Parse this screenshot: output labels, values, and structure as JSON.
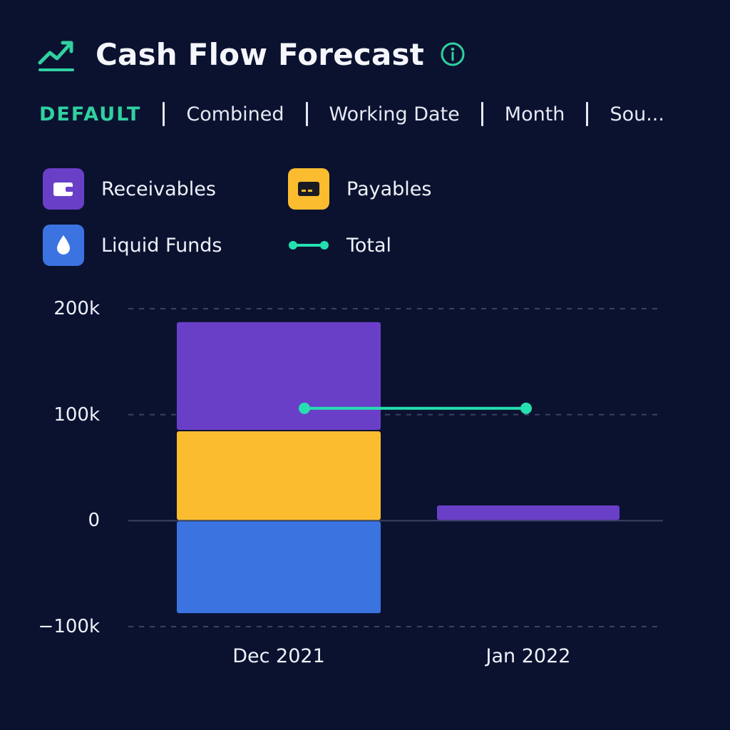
{
  "header": {
    "title": "Cash Flow Forecast",
    "trend_icon": "trending-up-icon",
    "info_icon": "info-icon"
  },
  "tabs": [
    {
      "label": "DEFAULT",
      "active": true
    },
    {
      "label": "Combined",
      "active": false
    },
    {
      "label": "Working Date",
      "active": false
    },
    {
      "label": "Month",
      "active": false
    },
    {
      "label": "Sou...",
      "active": false
    }
  ],
  "colors": {
    "background": "#0b1230",
    "receivables": "#6a3fc8",
    "payables": "#fbbd2f",
    "liquid_funds": "#3b74e0",
    "total": "#24e0b0",
    "accent": "#2fd1a0"
  },
  "legend": [
    {
      "label": "Receivables",
      "icon": "wallet-icon"
    },
    {
      "label": "Payables",
      "icon": "credit-card-icon"
    },
    {
      "label": "Liquid Funds",
      "icon": "droplet-icon"
    },
    {
      "label": "Total",
      "icon": "line-marker-icon"
    }
  ],
  "chart_data": {
    "type": "bar",
    "stacked": true,
    "categories": [
      "Dec 2021",
      "Jan 2022"
    ],
    "series": [
      {
        "name": "Liquid Funds",
        "values": [
          -88000,
          0
        ]
      },
      {
        "name": "Payables",
        "values": [
          85000,
          0
        ]
      },
      {
        "name": "Receivables",
        "values": [
          103000,
          15000
        ]
      },
      {
        "name": "Total",
        "type": "line",
        "values": [
          106000,
          106000
        ]
      }
    ],
    "y_ticks": [
      200000,
      100000,
      0,
      -100000
    ],
    "y_tick_labels": [
      "200k",
      "100k",
      "0",
      "−100k"
    ],
    "ylim": [
      -100000,
      200000
    ],
    "grid": true,
    "legend_position": "top-left"
  }
}
